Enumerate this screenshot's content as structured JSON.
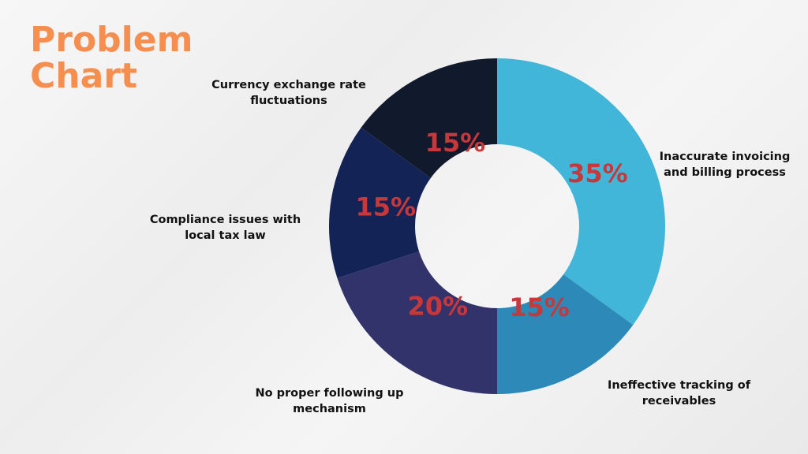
{
  "title": {
    "line1": "Problem",
    "line2": "Chart"
  },
  "chart_data": {
    "type": "pie",
    "donut": true,
    "slices": [
      {
        "label_line1": "Inaccurate invoicing",
        "label_line2": "and billing process",
        "value": 35,
        "value_label": "35%",
        "color": "#41b6d8"
      },
      {
        "label_line1": "Ineffective tracking of",
        "label_line2": "receivables",
        "value": 15,
        "value_label": "15%",
        "color": "#2d8ab8"
      },
      {
        "label_line1": "No proper following up",
        "label_line2": "mechanism",
        "value": 20,
        "value_label": "20%",
        "color": "#33336b"
      },
      {
        "label_line1": "Compliance issues with",
        "label_line2": "local tax law",
        "value": 15,
        "value_label": "15%",
        "color": "#142356"
      },
      {
        "label_line1": "Currency exchange rate",
        "label_line2": "fluctuations",
        "value": 15,
        "value_label": "15%",
        "color": "#111a2c"
      }
    ]
  }
}
